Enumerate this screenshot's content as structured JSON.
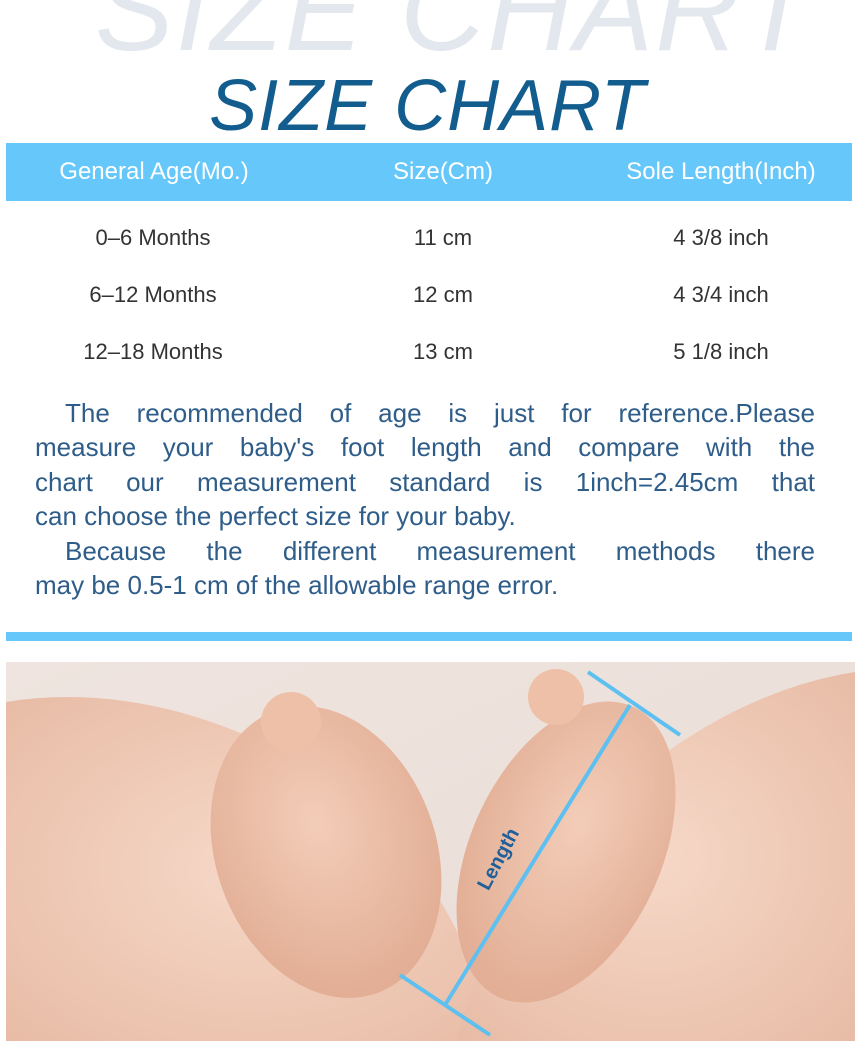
{
  "watermark": "SIZE CHART",
  "title": "SIZE CHART",
  "table": {
    "headers": [
      "General Age(Mo.)",
      "Size(Cm)",
      "Sole Length(Inch)"
    ],
    "rows": [
      [
        "0–6 Months",
        "11 cm",
        "4 3/8 inch"
      ],
      [
        "6–12 Months",
        "12 cm",
        "4 3/4 inch"
      ],
      [
        "12–18 Months",
        "13 cm",
        "5 1/8 inch"
      ]
    ]
  },
  "notes": {
    "lines": [
      "The recommended of age is just for reference.Please",
      "measure your baby's foot length and compare with the",
      "chart our measurement standard is 1inch=2.45cm that",
      "can choose the perfect size for your baby.",
      "Because the different measurement methods  there",
      "may be 0.5-1 cm of the allowable range error."
    ]
  },
  "photo": {
    "measure_label": "Length"
  },
  "colors": {
    "accent": "#66c8fa",
    "title": "#125d8e",
    "text": "#2f5d8a",
    "measure_line": "#5ec0f0"
  }
}
